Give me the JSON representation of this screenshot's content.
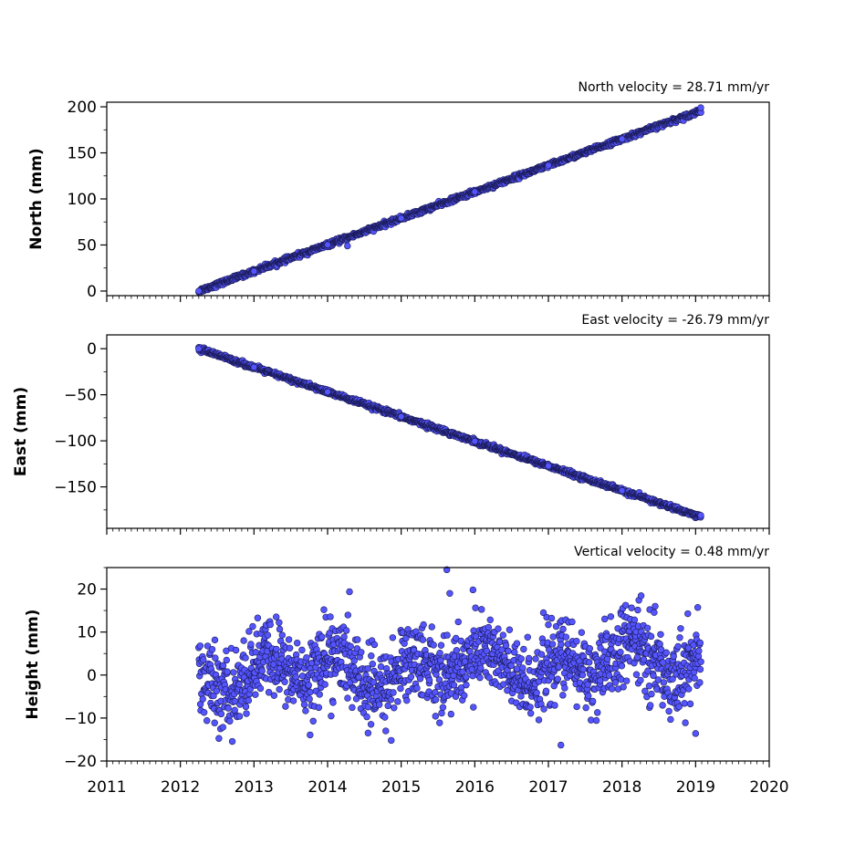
{
  "colors": {
    "marker_fill": "#5555ff",
    "marker_edge": "#1a1a55",
    "axis": "#000000",
    "background": "#ffffff"
  },
  "x_axis": {
    "type": "time",
    "range": [
      2011,
      2020
    ],
    "ticks": [
      2011,
      2012,
      2013,
      2014,
      2015,
      2016,
      2017,
      2018,
      2019,
      2020
    ],
    "tick_labels": [
      "2011",
      "2012",
      "2013",
      "2014",
      "2015",
      "2016",
      "2017",
      "2018",
      "2019",
      "2020"
    ],
    "minor_per_year": 12,
    "tick_labels_on": "bottom panel only"
  },
  "chart_data": [
    {
      "type": "scatter",
      "ylabel": "North (mm)",
      "annotation": "North velocity = 28.71 mm/yr",
      "ylim": [
        -5,
        205
      ],
      "yticks": [
        0,
        50,
        100,
        150,
        200
      ],
      "yticklabels": [
        "0",
        "50",
        "100",
        "150",
        "200"
      ],
      "grid": false,
      "generated_series": {
        "x_start": 2012.25,
        "x_end": 2019.07,
        "intercept": 0,
        "slope": 28.71,
        "noise": 1.2
      },
      "points": [
        [
          2012.25,
          0
        ],
        [
          2013.0,
          21.5
        ],
        [
          2014.0,
          50.2
        ],
        [
          2014.27,
          49
        ],
        [
          2015.0,
          79.0
        ],
        [
          2016.0,
          107.7
        ],
        [
          2017.0,
          136.4
        ],
        [
          2018.0,
          165.1
        ],
        [
          2019.07,
          199
        ]
      ]
    },
    {
      "type": "scatter",
      "ylabel": "East (mm)",
      "annotation": "East velocity = -26.79 mm/yr",
      "ylim": [
        -195,
        15
      ],
      "yticks": [
        0,
        -50,
        -100,
        -150
      ],
      "yticklabels": [
        "0",
        "−50",
        "−100",
        "−150"
      ],
      "grid": false,
      "generated_series": {
        "x_start": 2012.25,
        "x_end": 2019.07,
        "intercept": 0,
        "slope": -26.79,
        "noise": 1.2
      },
      "points": [
        [
          2012.25,
          0
        ],
        [
          2013.0,
          -20.1
        ],
        [
          2014.0,
          -46.9
        ],
        [
          2015.0,
          -73.7
        ],
        [
          2016.0,
          -100.5
        ],
        [
          2017.0,
          -127.3
        ],
        [
          2018.0,
          -154.1
        ],
        [
          2019.07,
          -181
        ]
      ]
    },
    {
      "type": "scatter",
      "ylabel": "Height (mm)",
      "annotation": "Vertical velocity = 0.48 mm/yr",
      "ylim": [
        -20,
        25
      ],
      "yticks": [
        -20,
        -10,
        0,
        10,
        20
      ],
      "yticklabels": [
        "−20",
        "−10",
        "0",
        "10",
        "20"
      ],
      "grid": false,
      "generated_series": {
        "x_start": 2012.25,
        "x_end": 2019.07,
        "intercept": 0,
        "slope": 0.48,
        "noise": 4.5
      },
      "points": [
        [
          2015.62,
          24.5
        ],
        [
          2015.66,
          19
        ],
        [
          2017.17,
          -16.3
        ],
        [
          2014.55,
          -13.5
        ],
        [
          2019.0,
          -13.6
        ],
        [
          2018.45,
          16
        ],
        [
          2013.95,
          15.2
        ]
      ]
    }
  ]
}
